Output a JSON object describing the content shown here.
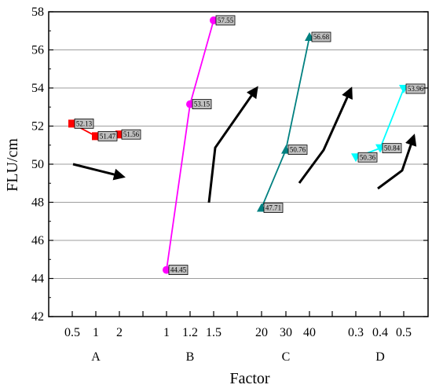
{
  "chart_data": {
    "type": "line",
    "xlabel": "Factor",
    "ylabel": "FLU/cm",
    "ylim": [
      42,
      58
    ],
    "yticks": [
      42,
      44,
      46,
      48,
      50,
      52,
      54,
      56,
      58
    ],
    "grid": "horizontal",
    "groups": [
      {
        "name": "A",
        "categories": [
          "0.5",
          "1",
          "2"
        ],
        "values": [
          52.13,
          51.47,
          51.56
        ],
        "labels": [
          "52.13",
          "51.47",
          "51.56"
        ],
        "color": "#ff0000",
        "marker": "square"
      },
      {
        "name": "B",
        "categories": [
          "1",
          "1.2",
          "1.5"
        ],
        "values": [
          44.45,
          53.15,
          57.55
        ],
        "labels": [
          "44.45",
          "53.15",
          "57.55"
        ],
        "color": "#ff00ff",
        "marker": "circle"
      },
      {
        "name": "C",
        "categories": [
          "20",
          "30",
          "40"
        ],
        "values": [
          47.71,
          50.76,
          56.68
        ],
        "labels": [
          "47.71",
          "50.76",
          "56.68"
        ],
        "color": "#008080",
        "marker": "triangle-up"
      },
      {
        "name": "D",
        "categories": [
          "0.3",
          "0.4",
          "0.5"
        ],
        "values": [
          50.36,
          50.84,
          53.96
        ],
        "labels": [
          "50.36",
          "50.84",
          "53.96"
        ],
        "color": "#00ffff",
        "marker": "triangle-down"
      }
    ],
    "annotations": "black trend arrows beside each factor group",
    "label_box_color": "#c0c0c0"
  }
}
